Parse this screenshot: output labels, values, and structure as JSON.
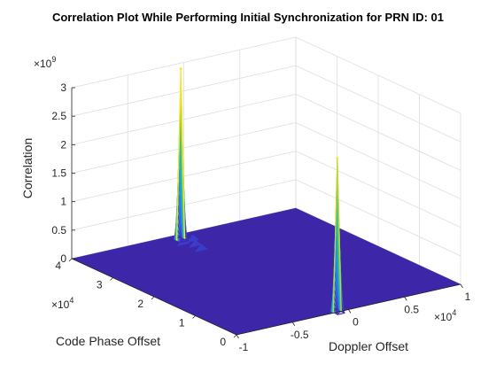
{
  "chart_data": {
    "type": "surface",
    "title": "Correlation Plot While Performing Initial Synchronization for PRN ID: 01",
    "xlabel": "Doppler Offset",
    "ylabel": "Code Phase Offset",
    "zlabel": "Correlation",
    "xlim": [
      -10000,
      10000
    ],
    "ylim": [
      0,
      40000
    ],
    "zlim": [
      0,
      3000000000
    ],
    "x_ticks": [
      -1,
      -0.5,
      0,
      0.5,
      1
    ],
    "x_tick_labels": [
      "-1",
      "-0.5",
      "0",
      "0.5",
      "1"
    ],
    "x_exponent": "×10",
    "x_exponent_power": "4",
    "y_ticks": [
      0,
      1,
      2,
      3,
      4
    ],
    "y_tick_labels": [
      "0",
      "1",
      "2",
      "3",
      "4"
    ],
    "y_exponent": "×10",
    "y_exponent_power": "4",
    "z_ticks": [
      0,
      0.5,
      1,
      1.5,
      2,
      2.5,
      3
    ],
    "z_tick_labels": [
      "0",
      "0.5",
      "1",
      "1.5",
      "2",
      "2.5",
      "3"
    ],
    "z_exponent": "×10",
    "z_exponent_power": "9",
    "grid": true,
    "colormap": "parula",
    "baseline_color": "#3e26a8",
    "peaks": [
      {
        "doppler": -1000,
        "code_phase": 38000,
        "correlation": 3000000000
      },
      {
        "doppler": -1000,
        "code_phase": 0,
        "correlation": 2700000000
      }
    ]
  }
}
